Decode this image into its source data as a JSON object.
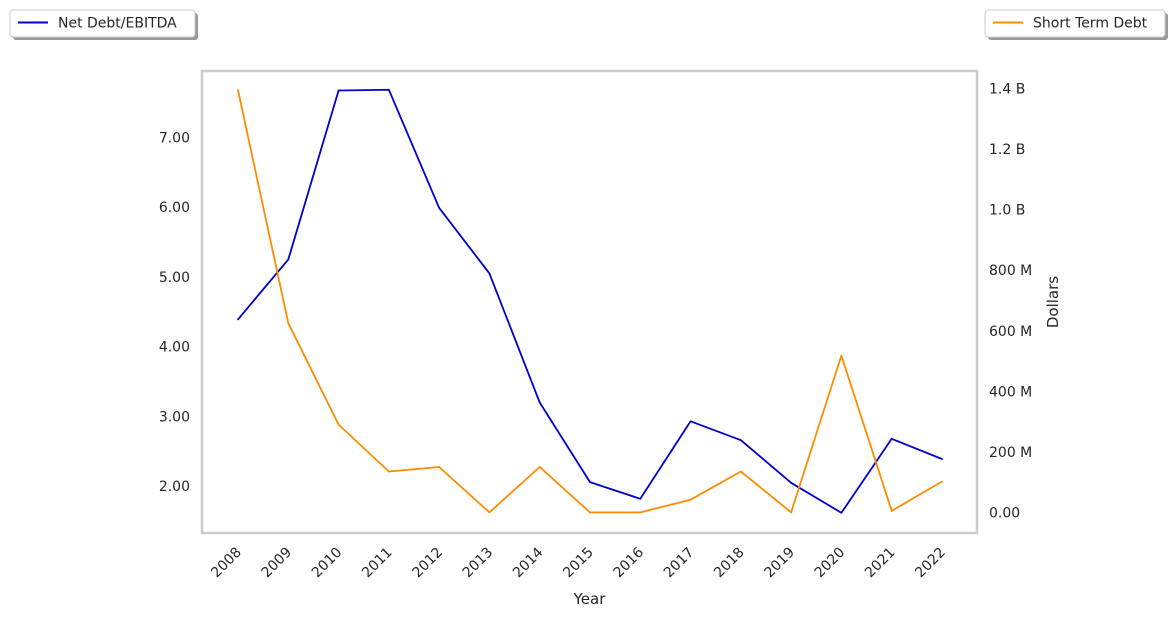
{
  "chart_data": {
    "type": "line",
    "xlabel": "Year",
    "ylabel_left": "",
    "ylabel_right": "Dollars",
    "categories": [
      "2008",
      "2009",
      "2010",
      "2011",
      "2012",
      "2013",
      "2014",
      "2015",
      "2016",
      "2017",
      "2018",
      "2019",
      "2020",
      "2021",
      "2022"
    ],
    "y_left_ticks": [
      {
        "value": 2,
        "label": "2.00"
      },
      {
        "value": 3,
        "label": "3.00"
      },
      {
        "value": 4,
        "label": "4.00"
      },
      {
        "value": 5,
        "label": "5.00"
      },
      {
        "value": 6,
        "label": "6.00"
      },
      {
        "value": 7,
        "label": "7.00"
      }
    ],
    "y_right_ticks": [
      {
        "value": 0,
        "label": "0.00"
      },
      {
        "value": 200000000,
        "label": "200 M"
      },
      {
        "value": 400000000,
        "label": "400 M"
      },
      {
        "value": 600000000,
        "label": "600 M"
      },
      {
        "value": 800000000,
        "label": "800 M"
      },
      {
        "value": 1000000000,
        "label": "1.0 B"
      },
      {
        "value": 1200000000,
        "label": "1.2 B"
      },
      {
        "value": 1400000000,
        "label": "1.4 B"
      }
    ],
    "y_left_range": [
      1.33,
      7.95
    ],
    "y_right_range": [
      -68000000,
      1458000000
    ],
    "grid": false,
    "series": [
      {
        "name": "Net Debt/EBITDA",
        "axis": "left",
        "color": "#0000cc",
        "legend_position": "top-left",
        "values": [
          4.39,
          5.25,
          7.67,
          7.68,
          5.99,
          5.05,
          3.2,
          2.06,
          1.82,
          2.93,
          2.66,
          2.05,
          1.62,
          2.68,
          2.39
        ]
      },
      {
        "name": "Short Term Debt",
        "axis": "right",
        "color": "#ff8c00",
        "legend_position": "top-right",
        "values": [
          1395000000,
          625000000,
          290000000,
          135000000,
          150000000,
          0,
          150000000,
          0,
          0,
          42000000,
          135000000,
          0,
          518000000,
          5000000,
          102000000
        ]
      }
    ]
  }
}
